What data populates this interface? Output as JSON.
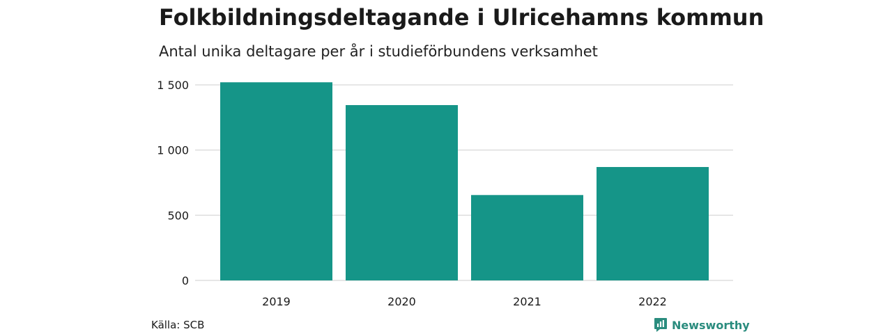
{
  "title": "Folkbildningsdeltagande i Ulricehamns kommun",
  "subtitle": "Antal unika deltagare per år i studieförbundens verksamhet",
  "source": "Källa: SCB",
  "brand": {
    "name": "Newsworthy",
    "icon": "newsworthy-logo-icon"
  },
  "colors": {
    "bar": "#159588",
    "grid": "#dddddd",
    "brand": "#2a8c7e"
  },
  "chart_data": {
    "type": "bar",
    "categories": [
      "2019",
      "2020",
      "2021",
      "2022"
    ],
    "values": [
      1520,
      1345,
      655,
      870
    ],
    "ylim": [
      0,
      1500
    ],
    "yticks": [
      0,
      500,
      1000,
      1500
    ],
    "ytick_labels": [
      "0",
      "500",
      "1 000",
      "1 500"
    ],
    "xlabel": "",
    "ylabel": "",
    "grid": true,
    "legend": "none"
  }
}
